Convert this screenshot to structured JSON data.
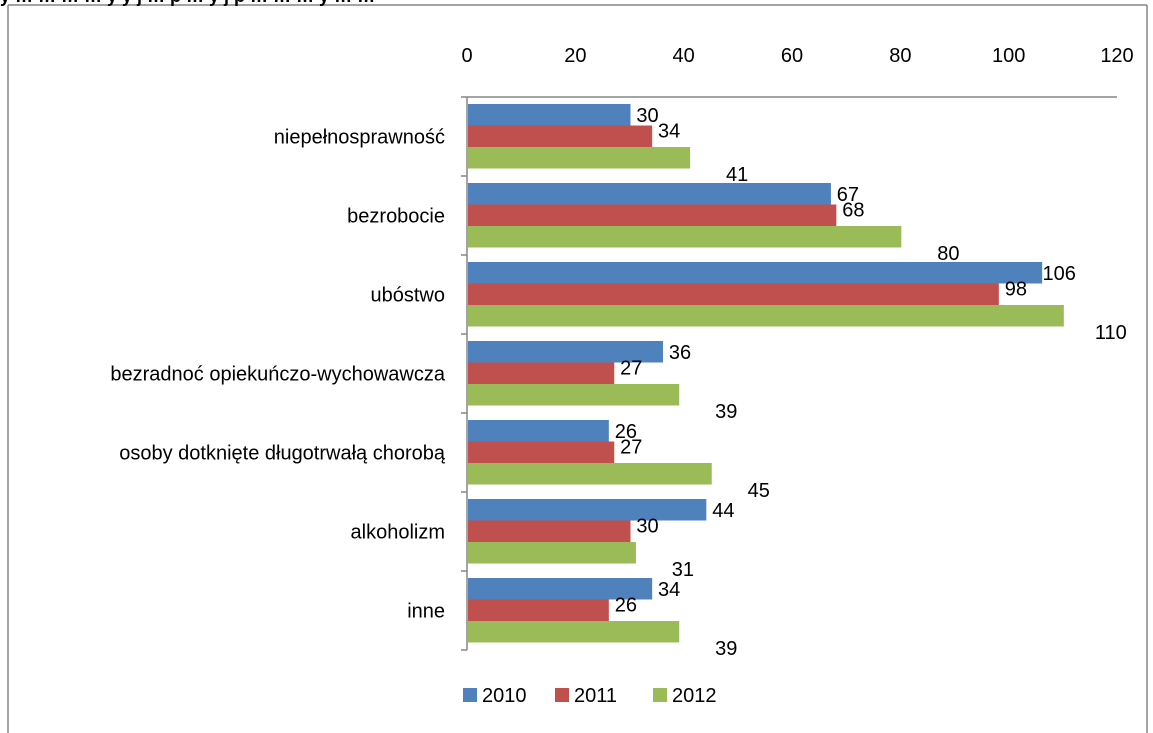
{
  "header": {
    "partial_title": "y … … … … y y j … p … y j p … … … y … …"
  },
  "colors": {
    "2010": "#4F81BD",
    "2011": "#C0504D",
    "2012": "#9BBB59",
    "axis": "#868686",
    "frame": "#868686"
  },
  "chart_data": {
    "type": "bar",
    "orientation": "horizontal",
    "categories": [
      "niepełnosprawność",
      "bezrobocie",
      "ubóstwo",
      "bezradnoć opiekuńczo-wychowawcza",
      "osoby dotknięte długotrwałą chorobą",
      "alkoholizm",
      "inne"
    ],
    "series": [
      {
        "name": "2010",
        "values": [
          30,
          67,
          106,
          36,
          26,
          44,
          34
        ]
      },
      {
        "name": "2011",
        "values": [
          34,
          68,
          98,
          27,
          27,
          30,
          26
        ]
      },
      {
        "name": "2012",
        "values": [
          41,
          80,
          110,
          39,
          45,
          31,
          39
        ]
      }
    ],
    "x_ticks": [
      "0",
      "20",
      "40",
      "60",
      "80",
      "100",
      "120"
    ],
    "xlim": [
      0,
      120
    ],
    "x_axis_position": "top",
    "grid": false,
    "legend_position": "bottom",
    "title": "",
    "xlabel": "",
    "ylabel": ""
  }
}
